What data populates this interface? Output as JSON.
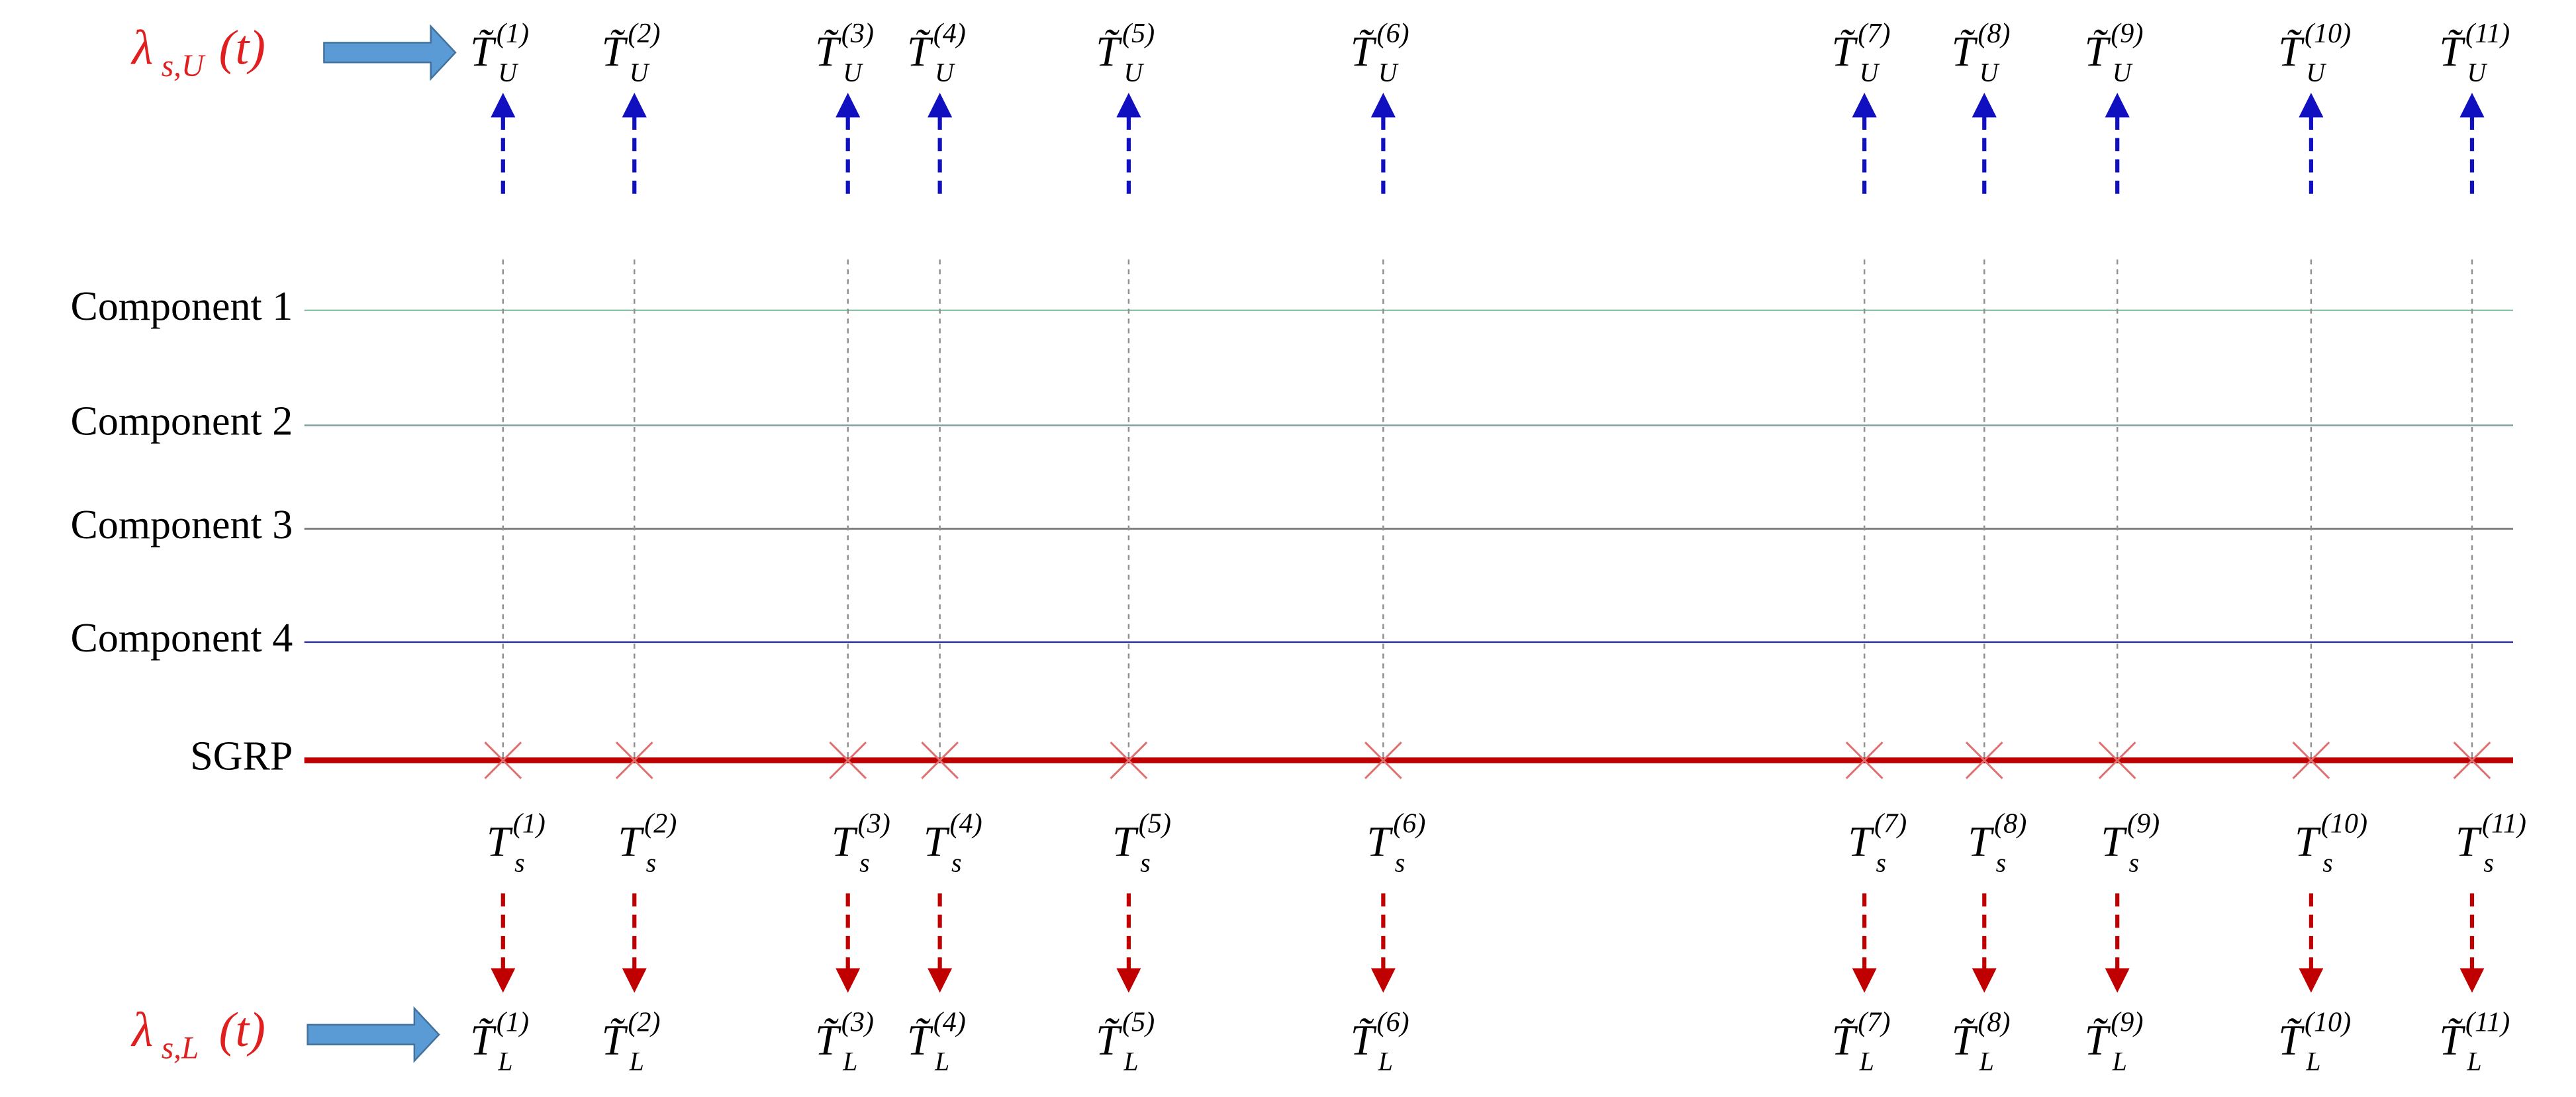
{
  "rates": {
    "upper": {
      "symbol": "λ",
      "sub": "s,U",
      "arg": "(t)"
    },
    "lower": {
      "symbol": "λ",
      "sub": "s,L",
      "arg": "(t)"
    }
  },
  "rows": [
    "Component 1",
    "Component 2",
    "Component 3",
    "Component 4",
    "SGRP"
  ],
  "upper_labels": [
    {
      "base": "T̃",
      "sub": "U",
      "sup": "(1)"
    },
    {
      "base": "T̃",
      "sub": "U",
      "sup": "(2)"
    },
    {
      "base": "T̃",
      "sub": "U",
      "sup": "(3)"
    },
    {
      "base": "T̃",
      "sub": "U",
      "sup": "(4)"
    },
    {
      "base": "T̃",
      "sub": "U",
      "sup": "(5)"
    },
    {
      "base": "T̃",
      "sub": "U",
      "sup": "(6)"
    },
    {
      "base": "T̃",
      "sub": "U",
      "sup": "(7)"
    },
    {
      "base": "T̃",
      "sub": "U",
      "sup": "(8)"
    },
    {
      "base": "T̃",
      "sub": "U",
      "sup": "(9)"
    },
    {
      "base": "T̃",
      "sub": "U",
      "sup": "(10)"
    },
    {
      "base": "T̃",
      "sub": "U",
      "sup": "(11)"
    }
  ],
  "sgrp_labels": [
    {
      "base": "T",
      "sub": "s",
      "sup": "(1)"
    },
    {
      "base": "T",
      "sub": "s",
      "sup": "(2)"
    },
    {
      "base": "T",
      "sub": "s",
      "sup": "(3)"
    },
    {
      "base": "T",
      "sub": "s",
      "sup": "(4)"
    },
    {
      "base": "T",
      "sub": "s",
      "sup": "(5)"
    },
    {
      "base": "T",
      "sub": "s",
      "sup": "(6)"
    },
    {
      "base": "T",
      "sub": "s",
      "sup": "(7)"
    },
    {
      "base": "T",
      "sub": "s",
      "sup": "(8)"
    },
    {
      "base": "T",
      "sub": "s",
      "sup": "(9)"
    },
    {
      "base": "T",
      "sub": "s",
      "sup": "(10)"
    },
    {
      "base": "T",
      "sub": "s",
      "sup": "(11)"
    }
  ],
  "lower_labels": [
    {
      "base": "T̃",
      "sub": "L",
      "sup": "(1)"
    },
    {
      "base": "T̃",
      "sub": "L",
      "sup": "(2)"
    },
    {
      "base": "T̃",
      "sub": "L",
      "sup": "(3)"
    },
    {
      "base": "T̃",
      "sub": "L",
      "sup": "(4)"
    },
    {
      "base": "T̃",
      "sub": "L",
      "sup": "(5)"
    },
    {
      "base": "T̃",
      "sub": "L",
      "sup": "(6)"
    },
    {
      "base": "T̃",
      "sub": "L",
      "sup": "(7)"
    },
    {
      "base": "T̃",
      "sub": "L",
      "sup": "(8)"
    },
    {
      "base": "T̃",
      "sub": "L",
      "sup": "(9)"
    },
    {
      "base": "T̃",
      "sub": "L",
      "sup": "(10)"
    },
    {
      "base": "T̃",
      "sub": "L",
      "sup": "(11)"
    }
  ]
}
